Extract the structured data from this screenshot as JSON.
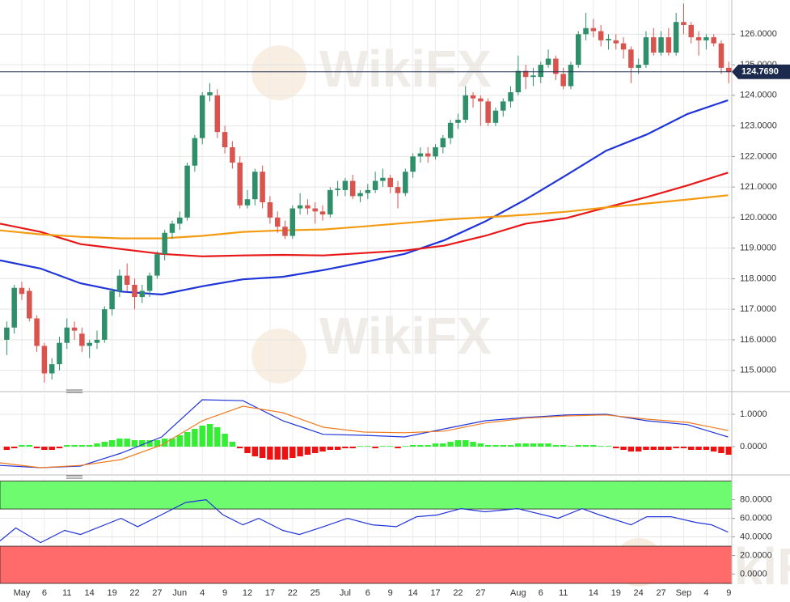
{
  "watermark": "WikiFX",
  "chart_data": [
    {
      "type": "candlestick",
      "up_color": "#2f8f6a",
      "down_color": "#d9534f",
      "xlim": [
        -0.9,
        96.4
      ],
      "ylim": [
        114.33,
        127.12
      ],
      "yticks": [
        {
          "value": 115,
          "label": "115.0000"
        },
        {
          "value": 116,
          "label": "116.0000"
        },
        {
          "value": 117,
          "label": "117.0000"
        },
        {
          "value": 118,
          "label": "118.0000"
        },
        {
          "value": 119,
          "label": "119.0000"
        },
        {
          "value": 120,
          "label": "120.0000"
        },
        {
          "value": 121,
          "label": "121.0000"
        },
        {
          "value": 122,
          "label": "122.0000"
        },
        {
          "value": 123,
          "label": "123.0000"
        },
        {
          "value": 124,
          "label": "124.0000"
        },
        {
          "value": 125,
          "label": "125.0000"
        },
        {
          "value": 126,
          "label": "126.0000"
        }
      ],
      "grid": true,
      "ohlc": [
        [
          116.0,
          116.6,
          115.5,
          116.4
        ],
        [
          116.4,
          117.8,
          116.2,
          117.7
        ],
        [
          117.7,
          117.9,
          117.3,
          117.5
        ],
        [
          117.6,
          117.7,
          116.6,
          116.7
        ],
        [
          116.7,
          116.8,
          115.6,
          115.8
        ],
        [
          115.8,
          115.9,
          114.6,
          114.9
        ],
        [
          114.9,
          115.4,
          114.7,
          115.2
        ],
        [
          115.2,
          116.1,
          115.0,
          115.9
        ],
        [
          115.9,
          116.7,
          115.7,
          116.4
        ],
        [
          116.4,
          116.6,
          116.0,
          116.3
        ],
        [
          116.2,
          116.4,
          115.6,
          115.8
        ],
        [
          115.8,
          116.0,
          115.4,
          115.9
        ],
        [
          115.9,
          116.3,
          115.7,
          116.0
        ],
        [
          116.0,
          117.1,
          115.9,
          117.0
        ],
        [
          117.0,
          117.7,
          116.8,
          117.6
        ],
        [
          117.6,
          118.3,
          117.4,
          118.1
        ],
        [
          118.1,
          118.5,
          117.6,
          117.8
        ],
        [
          117.8,
          118.0,
          117.0,
          117.4
        ],
        [
          117.4,
          117.8,
          117.2,
          117.6
        ],
        [
          117.6,
          118.2,
          117.4,
          118.1
        ],
        [
          118.1,
          118.9,
          118.0,
          118.8
        ],
        [
          118.8,
          119.6,
          118.6,
          119.5
        ],
        [
          119.5,
          119.9,
          119.3,
          119.8
        ],
        [
          119.8,
          120.2,
          119.6,
          120.0
        ],
        [
          120.0,
          121.8,
          119.9,
          121.7
        ],
        [
          121.7,
          122.7,
          121.5,
          122.6
        ],
        [
          122.6,
          124.1,
          122.4,
          124.0
        ],
        [
          124.0,
          124.4,
          123.8,
          124.1
        ],
        [
          124.0,
          124.2,
          122.6,
          122.8
        ],
        [
          122.8,
          123.0,
          122.1,
          122.3
        ],
        [
          122.3,
          122.5,
          121.6,
          121.8
        ],
        [
          121.8,
          122.0,
          120.3,
          120.4
        ],
        [
          120.4,
          120.9,
          120.3,
          120.6
        ],
        [
          120.6,
          121.6,
          120.4,
          121.5
        ],
        [
          121.5,
          121.7,
          120.3,
          120.5
        ],
        [
          120.5,
          120.7,
          119.8,
          120.0
        ],
        [
          120.0,
          120.2,
          119.5,
          119.7
        ],
        [
          119.7,
          119.9,
          119.3,
          119.4
        ],
        [
          119.4,
          120.4,
          119.3,
          120.3
        ],
        [
          120.3,
          120.8,
          120.1,
          120.4
        ],
        [
          120.4,
          120.6,
          120.1,
          120.3
        ],
        [
          120.3,
          120.5,
          119.8,
          120.2
        ],
        [
          120.2,
          120.4,
          119.9,
          120.1
        ],
        [
          120.1,
          121.0,
          120.0,
          120.9
        ],
        [
          120.9,
          121.2,
          120.7,
          120.95
        ],
        [
          120.9,
          121.3,
          120.7,
          121.2
        ],
        [
          121.2,
          121.4,
          120.6,
          120.7
        ],
        [
          120.7,
          120.9,
          120.5,
          120.8
        ],
        [
          120.8,
          121.1,
          120.6,
          120.9
        ],
        [
          120.9,
          121.5,
          120.8,
          121.2
        ],
        [
          121.2,
          121.6,
          121.0,
          121.3
        ],
        [
          121.3,
          121.4,
          120.8,
          121.0
        ],
        [
          121.0,
          121.2,
          120.3,
          120.8
        ],
        [
          120.8,
          121.6,
          120.7,
          121.5
        ],
        [
          121.5,
          122.1,
          121.3,
          122.0
        ],
        [
          122.0,
          122.3,
          121.8,
          122.1
        ],
        [
          122.1,
          122.3,
          121.8,
          122.0
        ],
        [
          122.0,
          122.4,
          121.9,
          122.3
        ],
        [
          122.3,
          122.7,
          122.1,
          122.6
        ],
        [
          122.6,
          123.2,
          122.4,
          123.1
        ],
        [
          123.1,
          123.4,
          122.9,
          123.2
        ],
        [
          123.2,
          124.3,
          123.1,
          124.0
        ],
        [
          124.0,
          124.1,
          123.6,
          123.9
        ],
        [
          123.9,
          124.0,
          123.0,
          123.8
        ],
        [
          123.8,
          123.9,
          123.0,
          123.1
        ],
        [
          123.1,
          123.6,
          123.0,
          123.5
        ],
        [
          123.5,
          123.9,
          123.3,
          123.8
        ],
        [
          123.8,
          124.3,
          123.6,
          124.1
        ],
        [
          124.1,
          125.3,
          124.0,
          124.8
        ],
        [
          124.8,
          125.0,
          124.2,
          124.6
        ],
        [
          124.6,
          124.9,
          124.3,
          124.65
        ],
        [
          124.6,
          125.1,
          124.4,
          125.0
        ],
        [
          125.0,
          125.5,
          124.9,
          125.2
        ],
        [
          125.2,
          125.3,
          124.5,
          124.7
        ],
        [
          124.7,
          124.9,
          124.2,
          124.3
        ],
        [
          124.3,
          125.1,
          124.2,
          125.0
        ],
        [
          125.0,
          126.1,
          124.9,
          126.0
        ],
        [
          126.0,
          126.7,
          125.8,
          126.2
        ],
        [
          126.2,
          126.5,
          125.9,
          126.1
        ],
        [
          126.1,
          126.3,
          125.6,
          125.8
        ],
        [
          125.8,
          126.0,
          125.5,
          125.85
        ],
        [
          125.8,
          126.0,
          125.5,
          125.7
        ],
        [
          125.7,
          125.9,
          125.2,
          125.5
        ],
        [
          125.5,
          125.6,
          124.4,
          124.9
        ],
        [
          124.9,
          125.2,
          124.7,
          125.0
        ],
        [
          125.0,
          126.1,
          124.9,
          125.9
        ],
        [
          125.9,
          126.2,
          125.3,
          125.4
        ],
        [
          125.4,
          126.1,
          125.3,
          125.9
        ],
        [
          125.9,
          126.2,
          125.3,
          125.4
        ],
        [
          125.4,
          126.7,
          125.3,
          126.4
        ],
        [
          126.4,
          127.0,
          126.0,
          126.3
        ],
        [
          126.3,
          126.4,
          125.7,
          125.9
        ],
        [
          125.9,
          126.1,
          125.3,
          125.8
        ],
        [
          125.8,
          126.0,
          125.5,
          125.9
        ],
        [
          125.9,
          126.0,
          125.6,
          125.7
        ],
        [
          125.7,
          125.8,
          124.7,
          124.9
        ],
        [
          124.9,
          125.1,
          124.4,
          124.769
        ]
      ],
      "x": [
        -0.9,
        4.5,
        9.8,
        15.2,
        20.6,
        26,
        31.4,
        36.7,
        42.1,
        47.5,
        52.9,
        58.2,
        63.6,
        69,
        74.4,
        79.7,
        85.1,
        90.5,
        95.9
      ],
      "overlays": [
        {
          "color": "#1f35d8",
          "values": [
            118.6,
            118.33,
            117.85,
            117.58,
            117.48,
            117.75,
            117.98,
            118.06,
            118.28,
            118.54,
            118.81,
            119.26,
            119.87,
            120.59,
            121.39,
            122.19,
            122.72,
            123.39,
            123.84
          ]
        },
        {
          "color": "#e81818",
          "values": [
            119.8,
            119.53,
            119.13,
            118.97,
            118.81,
            118.73,
            118.76,
            118.78,
            118.76,
            118.84,
            118.92,
            119.08,
            119.4,
            119.8,
            119.98,
            120.33,
            120.67,
            121.05,
            121.47
          ]
        },
        {
          "color": "#f39b12",
          "values": [
            119.58,
            119.45,
            119.37,
            119.32,
            119.32,
            119.4,
            119.53,
            119.58,
            119.61,
            119.71,
            119.82,
            119.93,
            120.01,
            120.09,
            120.19,
            120.33,
            120.46,
            120.59,
            120.73
          ]
        }
      ],
      "last": {
        "value": 124.769,
        "label": "124.7690",
        "color": "#1c2b4d"
      }
    },
    {
      "type": "macd",
      "ylim": [
        -0.825,
        1.625
      ],
      "yticks": [
        {
          "value": 1,
          "label": "1.0000"
        },
        {
          "value": 0,
          "label": "0.0000"
        }
      ],
      "histogram": [
        -0.1,
        -0.05,
        0.05,
        0.05,
        -0.05,
        -0.1,
        -0.1,
        -0.05,
        0.05,
        0.05,
        0.05,
        0.05,
        0.1,
        0.15,
        0.2,
        0.25,
        0.25,
        0.2,
        0.2,
        0.2,
        0.2,
        0.25,
        0.25,
        0.35,
        0.45,
        0.55,
        0.65,
        0.7,
        0.6,
        0.4,
        0.15,
        -0.05,
        -0.2,
        -0.3,
        -0.35,
        -0.4,
        -0.4,
        -0.4,
        -0.35,
        -0.3,
        -0.25,
        -0.2,
        -0.15,
        -0.1,
        -0.1,
        -0.05,
        -0.05,
        0.02,
        0.02,
        -0.05,
        0.02,
        0.02,
        -0.05,
        0.02,
        0.05,
        0.05,
        0.05,
        0.1,
        0.1,
        0.15,
        0.2,
        0.2,
        0.15,
        0.1,
        0.05,
        0.05,
        0.05,
        0.05,
        0.1,
        0.1,
        0.1,
        0.1,
        0.1,
        0.05,
        0.05,
        0.02,
        0.05,
        0.05,
        0.05,
        0.02,
        0.02,
        -0.05,
        -0.1,
        -0.15,
        -0.15,
        -0.1,
        -0.1,
        -0.1,
        -0.1,
        -0.05,
        -0.05,
        -0.1,
        -0.1,
        -0.1,
        -0.15,
        -0.2,
        -0.25
      ],
      "hist_colors": [
        "#33ee33",
        "#ee1111"
      ],
      "x": [
        -0.9,
        4.5,
        9.8,
        15.2,
        20.6,
        26,
        31.4,
        36.7,
        42.1,
        47.5,
        52.9,
        58.2,
        63.6,
        69,
        74.4,
        79.7,
        85.1,
        90.5,
        95.9
      ],
      "series": [
        {
          "color": "#1f35d8",
          "values": [
            -0.58,
            -0.65,
            -0.6,
            -0.2,
            0.3,
            1.45,
            1.42,
            0.8,
            0.38,
            0.35,
            0.3,
            0.55,
            0.8,
            0.9,
            0.98,
            1.0,
            0.8,
            0.68,
            0.3
          ]
        },
        {
          "color": "#f07a20",
          "values": [
            -0.5,
            -0.65,
            -0.58,
            -0.4,
            0.05,
            0.8,
            1.25,
            1.05,
            0.6,
            0.45,
            0.43,
            0.48,
            0.73,
            0.88,
            0.95,
            0.98,
            0.85,
            0.75,
            0.5
          ]
        }
      ]
    },
    {
      "type": "rsi",
      "ylim": [
        -10,
        104
      ],
      "yticks": [
        {
          "value": 80,
          "label": "80.0000"
        },
        {
          "value": 60,
          "label": "60.0000"
        },
        {
          "value": 40,
          "label": "40.0000"
        },
        {
          "value": 20,
          "label": "20.0000"
        },
        {
          "value": 0,
          "label": "0.0000"
        }
      ],
      "bands": [
        {
          "range": [
            70,
            100
          ],
          "color": "#6ffb6f"
        },
        {
          "range": [
            -10,
            30
          ],
          "color": "#ff6b6b"
        }
      ],
      "x": [
        -0.9,
        1.2,
        4.5,
        7.7,
        9.8,
        15.2,
        17.4,
        20.6,
        23.8,
        26.5,
        28.7,
        31.4,
        33.5,
        36.7,
        38.9,
        42.1,
        45.3,
        48.6,
        51.8,
        54.5,
        57.2,
        60.4,
        63.6,
        67.9,
        73.3,
        76.5,
        78.7,
        83,
        85.1,
        88.3,
        91.6,
        93.7,
        95.9
      ],
      "series": [
        {
          "color": "#1f35d8",
          "values": [
            35.7,
            49.6,
            33.9,
            47,
            42.6,
            60,
            51,
            64,
            77,
            80,
            64,
            53,
            60,
            47,
            42.6,
            51,
            60,
            53,
            51,
            61.7,
            63.5,
            70.4,
            67,
            70.4,
            60,
            70.4,
            64,
            53,
            61.7,
            61.7,
            55.6,
            53,
            45.2
          ]
        }
      ],
      "xticks": [
        {
          "value": 2,
          "label": "May"
        },
        {
          "value": 5,
          "label": "6"
        },
        {
          "value": 8,
          "label": "11"
        },
        {
          "value": 11,
          "label": "14"
        },
        {
          "value": 14,
          "label": "19"
        },
        {
          "value": 17,
          "label": "22"
        },
        {
          "value": 20,
          "label": "27"
        },
        {
          "value": 23,
          "label": "Jun"
        },
        {
          "value": 26,
          "label": "4"
        },
        {
          "value": 29,
          "label": "9"
        },
        {
          "value": 32,
          "label": "12"
        },
        {
          "value": 35,
          "label": "17"
        },
        {
          "value": 38,
          "label": "22"
        },
        {
          "value": 41,
          "label": "25"
        },
        {
          "value": 45,
          "label": "Jul"
        },
        {
          "value": 48,
          "label": "6"
        },
        {
          "value": 51,
          "label": "9"
        },
        {
          "value": 54,
          "label": "14"
        },
        {
          "value": 57,
          "label": "17"
        },
        {
          "value": 60,
          "label": "22"
        },
        {
          "value": 63,
          "label": "27"
        },
        {
          "value": 68,
          "label": "Aug"
        },
        {
          "value": 71,
          "label": "6"
        },
        {
          "value": 74,
          "label": "11"
        },
        {
          "value": 78,
          "label": "14"
        },
        {
          "value": 81,
          "label": "19"
        },
        {
          "value": 84,
          "label": "24"
        },
        {
          "value": 87,
          "label": "27"
        },
        {
          "value": 90,
          "label": "Sep"
        },
        {
          "value": 93,
          "label": "4"
        },
        {
          "value": 96,
          "label": "9"
        }
      ]
    }
  ]
}
